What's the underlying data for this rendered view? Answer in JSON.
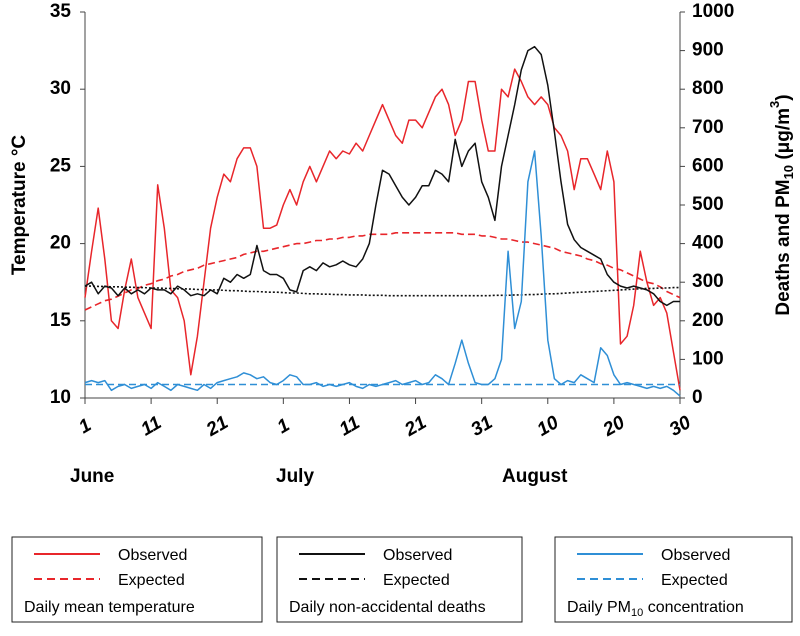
{
  "chart_data": {
    "type": "line",
    "ylabel": "Temperature  °C",
    "y2label": {
      "text": "Deaths and PM",
      "sub": "10",
      "rest": " (μg/m",
      "sup": "3",
      "end": ")"
    },
    "x": [
      0,
      1,
      2,
      3,
      4,
      5,
      6,
      7,
      8,
      9,
      10,
      11,
      12,
      13,
      14,
      15,
      16,
      17,
      18,
      19,
      20,
      21,
      22,
      23,
      24,
      25,
      26,
      27,
      28,
      29,
      30,
      31,
      32,
      33,
      34,
      35,
      36,
      37,
      38,
      39,
      40,
      41,
      42,
      43,
      44,
      45,
      46,
      47,
      48,
      49,
      50,
      51,
      52,
      53,
      54,
      55,
      56,
      57,
      58,
      59,
      60,
      61,
      62,
      63,
      64,
      65,
      66,
      67,
      68,
      69,
      70,
      71,
      72,
      73,
      74,
      75,
      76,
      77,
      78,
      79,
      80,
      81,
      82,
      83,
      84,
      85,
      86,
      87,
      88,
      89,
      90
    ],
    "xlim": [
      0,
      90
    ],
    "xticks": [
      {
        "value": 0,
        "label": "1"
      },
      {
        "value": 10,
        "label": "11"
      },
      {
        "value": 20,
        "label": "21"
      },
      {
        "value": 30,
        "label": "1"
      },
      {
        "value": 40,
        "label": "11"
      },
      {
        "value": 50,
        "label": "21"
      },
      {
        "value": 60,
        "label": "31"
      },
      {
        "value": 70,
        "label": "10"
      },
      {
        "value": 80,
        "label": "20"
      },
      {
        "value": 90,
        "label": "30"
      }
    ],
    "month_labels": [
      "June",
      "July",
      "August"
    ],
    "ylim": [
      10,
      35
    ],
    "yticks": [
      10,
      15,
      20,
      25,
      30,
      35
    ],
    "y2lim": [
      0,
      1000
    ],
    "y2ticks": [
      0,
      100,
      200,
      300,
      400,
      500,
      600,
      700,
      800,
      900,
      1000
    ],
    "groups": [
      {
        "title": "Daily mean temperature",
        "series": [
          {
            "name": "Observed",
            "color": "#e8262b",
            "dash": "solid",
            "values": [
              16.5,
              19.5,
              22.3,
              19,
              15,
              14.5,
              17,
              19,
              16.5,
              15.5,
              14.5,
              23.8,
              21,
              17,
              16.5,
              15,
              11.5,
              14,
              17.5,
              21,
              23,
              24.5,
              24,
              25.5,
              26.2,
              26.2,
              25,
              21,
              21,
              21.2,
              22.5,
              23.5,
              22.5,
              24,
              25,
              24,
              25,
              26,
              25.5,
              26,
              25.8,
              26.5,
              26,
              27,
              28,
              29,
              28,
              27,
              26.5,
              28,
              28,
              27.5,
              28.5,
              29.5,
              30,
              29,
              27,
              28,
              30.5,
              30.5,
              28,
              26,
              26,
              30,
              29.5,
              31.3,
              30.5,
              29.5,
              29,
              29.5,
              29,
              27.5,
              27,
              26,
              23.5,
              25.5,
              25.5,
              24.5,
              23.5,
              26,
              24,
              13.5,
              14,
              16,
              19.5,
              17.5,
              16,
              16.5,
              15.5,
              13,
              10.5
            ]
          },
          {
            "name": "Expected",
            "color": "#e8262b",
            "dash": "dashed",
            "values": [
              15.7,
              15.9,
              16.1,
              16.3,
              16.4,
              16.6,
              16.8,
              17.0,
              17.1,
              17.3,
              17.4,
              17.6,
              17.7,
              17.9,
              18.0,
              18.2,
              18.3,
              18.4,
              18.6,
              18.7,
              18.8,
              18.9,
              19.0,
              19.1,
              19.3,
              19.4,
              19.5,
              19.5,
              19.6,
              19.7,
              19.8,
              19.9,
              20.0,
              20.0,
              20.1,
              20.2,
              20.2,
              20.3,
              20.3,
              20.4,
              20.4,
              20.5,
              20.5,
              20.6,
              20.6,
              20.6,
              20.6,
              20.7,
              20.7,
              20.7,
              20.7,
              20.7,
              20.7,
              20.7,
              20.7,
              20.7,
              20.7,
              20.6,
              20.6,
              20.6,
              20.5,
              20.5,
              20.4,
              20.3,
              20.3,
              20.2,
              20.1,
              20.1,
              20.0,
              19.9,
              19.8,
              19.7,
              19.5,
              19.4,
              19.3,
              19.2,
              19.0,
              18.9,
              18.7,
              18.6,
              18.4,
              18.3,
              18.1,
              17.9,
              17.7,
              17.5,
              17.4,
              17.2,
              16.9,
              16.7,
              16.5
            ]
          }
        ]
      },
      {
        "title": "Daily non-accidental deaths",
        "series": [
          {
            "name": "Observed",
            "color": "#111111",
            "dash": "solid",
            "axis": "y2",
            "values": [
              290,
              300,
              270,
              290,
              285,
              265,
              285,
              270,
              280,
              270,
              285,
              280,
              280,
              270,
              290,
              280,
              265,
              270,
              265,
              280,
              270,
              310,
              300,
              320,
              310,
              320,
              395,
              330,
              320,
              320,
              310,
              280,
              275,
              330,
              340,
              330,
              350,
              340,
              345,
              355,
              345,
              340,
              360,
              400,
              500,
              590,
              580,
              550,
              520,
              500,
              520,
              550,
              550,
              590,
              580,
              560,
              670,
              600,
              640,
              660,
              560,
              520,
              460,
              600,
              680,
              760,
              850,
              900,
              910,
              890,
              810,
              690,
              560,
              450,
              410,
              390,
              380,
              370,
              360,
              320,
              300,
              290,
              285,
              290,
              285,
              280,
              270,
              250,
              240,
              250,
              250
            ]
          },
          {
            "name": "Expected",
            "color": "#111111",
            "dash": "dotted",
            "axis": "y2",
            "values": [
              290,
              290,
              289,
              289,
              288,
              288,
              287,
              287,
              286,
              286,
              285,
              285,
              284,
              284,
              283,
              283,
              282,
              281,
              281,
              280,
              280,
              279,
              278,
              278,
              277,
              276,
              276,
              275,
              274,
              274,
              273,
              272,
              272,
              271,
              270,
              270,
              269,
              269,
              268,
              268,
              267,
              267,
              267,
              266,
              266,
              266,
              265,
              265,
              265,
              265,
              265,
              265,
              265,
              265,
              265,
              265,
              265,
              265,
              265,
              265,
              265,
              265,
              266,
              266,
              266,
              267,
              267,
              268,
              268,
              269,
              270,
              270,
              271,
              272,
              273,
              274,
              275,
              276,
              277,
              278,
              279,
              280,
              281,
              282,
              283,
              284,
              284,
              285,
              285,
              286,
              286
            ]
          }
        ]
      },
      {
        "title": {
          "text": "Daily PM",
          "sub": "10",
          "rest": " concentration"
        },
        "series": [
          {
            "name": "Observed",
            "color": "#2f8fd6",
            "dash": "solid",
            "axis": "y2",
            "values": [
              40,
              45,
              40,
              45,
              20,
              30,
              35,
              25,
              30,
              35,
              25,
              40,
              30,
              20,
              35,
              30,
              25,
              20,
              35,
              25,
              40,
              45,
              50,
              55,
              65,
              60,
              50,
              55,
              40,
              35,
              45,
              60,
              55,
              35,
              35,
              40,
              30,
              35,
              30,
              35,
              40,
              30,
              25,
              35,
              30,
              35,
              40,
              45,
              35,
              40,
              45,
              35,
              40,
              60,
              50,
              35,
              90,
              150,
              90,
              40,
              35,
              35,
              50,
              100,
              380,
              180,
              250,
              560,
              640,
              420,
              150,
              50,
              35,
              45,
              40,
              60,
              50,
              40,
              130,
              110,
              60,
              35,
              40,
              35,
              30,
              25,
              30,
              25,
              30,
              20,
              5
            ]
          },
          {
            "name": "Expected",
            "color": "#2f8fd6",
            "dash": "dashed",
            "axis": "y2",
            "values": [
              35,
              35,
              35,
              35,
              35,
              35,
              35,
              35,
              35,
              35,
              35,
              35,
              35,
              35,
              35,
              35,
              35,
              35,
              35,
              35,
              35,
              35,
              35,
              35,
              35,
              35,
              35,
              35,
              35,
              35,
              35,
              35,
              35,
              35,
              35,
              35,
              35,
              35,
              35,
              35,
              35,
              35,
              35,
              35,
              35,
              35,
              35,
              35,
              35,
              35,
              35,
              35,
              35,
              35,
              35,
              35,
              35,
              35,
              35,
              35,
              35,
              35,
              35,
              35,
              35,
              35,
              35,
              35,
              35,
              35,
              35,
              35,
              35,
              35,
              35,
              35,
              35,
              35,
              35,
              35,
              35,
              35,
              35,
              35,
              35,
              35,
              35,
              35,
              35,
              35,
              35
            ]
          }
        ]
      }
    ]
  }
}
